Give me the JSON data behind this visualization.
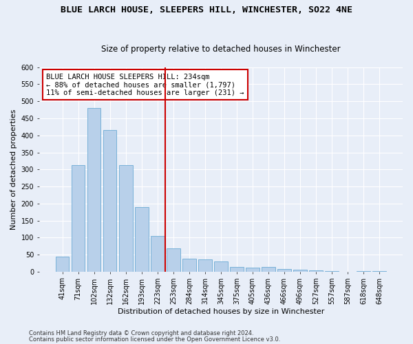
{
  "title": "BLUE LARCH HOUSE, SLEEPERS HILL, WINCHESTER, SO22 4NE",
  "subtitle": "Size of property relative to detached houses in Winchester",
  "xlabel": "Distribution of detached houses by size in Winchester",
  "ylabel": "Number of detached properties",
  "footnote1": "Contains HM Land Registry data © Crown copyright and database right 2024.",
  "footnote2": "Contains public sector information licensed under the Open Government Licence v3.0.",
  "categories": [
    "41sqm",
    "71sqm",
    "102sqm",
    "132sqm",
    "162sqm",
    "193sqm",
    "223sqm",
    "253sqm",
    "284sqm",
    "314sqm",
    "345sqm",
    "375sqm",
    "405sqm",
    "436sqm",
    "466sqm",
    "496sqm",
    "527sqm",
    "557sqm",
    "587sqm",
    "618sqm",
    "648sqm"
  ],
  "values": [
    45,
    312,
    480,
    415,
    312,
    190,
    104,
    68,
    38,
    35,
    30,
    13,
    11,
    13,
    7,
    5,
    3,
    1,
    0,
    2,
    1
  ],
  "bar_color": "#b8d0ea",
  "bar_edge_color": "#6aaad4",
  "vline_x_index": 6.5,
  "vline_color": "#cc0000",
  "annotation_text": "BLUE LARCH HOUSE SLEEPERS HILL: 234sqm\n← 88% of detached houses are smaller (1,797)\n11% of semi-detached houses are larger (231) →",
  "annotation_box_color": "white",
  "annotation_box_edge": "#cc0000",
  "ylim": [
    0,
    600
  ],
  "yticks": [
    0,
    50,
    100,
    150,
    200,
    250,
    300,
    350,
    400,
    450,
    500,
    550,
    600
  ],
  "background_color": "#e8eef8",
  "grid_color": "#ffffff",
  "title_fontsize": 9.5,
  "subtitle_fontsize": 8.5,
  "xlabel_fontsize": 8,
  "ylabel_fontsize": 8,
  "tick_fontsize": 7,
  "annotation_fontsize": 7.5,
  "footnote_fontsize": 6
}
